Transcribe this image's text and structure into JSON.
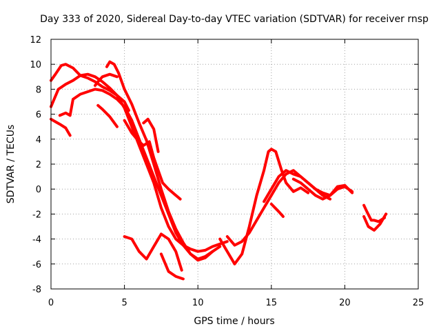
{
  "chart_data": {
    "type": "scatter",
    "title": "Day 333 of 2020, Sidereal Day-to-day VTEC variation (SDTVAR) for receiver rnsp",
    "xlabel": "GPS time / hours",
    "ylabel": "SDTVAR / TECUs",
    "xlim": [
      0,
      25
    ],
    "ylim": [
      -8,
      12
    ],
    "xticks": [
      "0",
      "5",
      "10",
      "15",
      "20",
      "25"
    ],
    "yticks": [
      "-8",
      "-6",
      "-4",
      "-2",
      "0",
      "2",
      "4",
      "6",
      "8",
      "10",
      "12"
    ],
    "grid": true,
    "marker_color": "#ff0000",
    "series": [
      {
        "name": "trace-1",
        "x": [
          0.0,
          0.3,
          0.7,
          1.0,
          1.5,
          2.0,
          2.5,
          3.0,
          3.5,
          4.0,
          4.5,
          5.0,
          5.3
        ],
        "y": [
          8.7,
          9.2,
          9.9,
          10.0,
          9.7,
          9.1,
          8.9,
          8.6,
          8.2,
          7.9,
          7.5,
          7.0,
          6.3
        ]
      },
      {
        "name": "trace-2",
        "x": [
          0.0,
          0.5,
          1.0,
          1.5,
          2.0,
          2.5,
          3.0,
          3.5,
          4.0,
          4.5,
          5.0,
          5.5,
          6.0,
          6.5,
          7.0,
          7.5,
          8.0,
          8.5,
          9.0,
          9.5,
          10.0,
          10.5,
          11.0,
          11.5,
          12.0
        ],
        "y": [
          6.6,
          8.0,
          8.4,
          8.7,
          9.1,
          9.2,
          9.0,
          8.6,
          8.1,
          7.5,
          6.5,
          5.0,
          3.5,
          2.0,
          0.5,
          -1.5,
          -3.0,
          -4.0,
          -4.5,
          -4.8,
          -5.0,
          -4.9,
          -4.6,
          -4.4,
          -4.2
        ]
      },
      {
        "name": "trace-3",
        "x": [
          0.0,
          0.3,
          0.6,
          1.0,
          1.3
        ],
        "y": [
          5.6,
          5.4,
          5.2,
          4.9,
          4.3
        ]
      },
      {
        "name": "trace-4",
        "x": [
          0.6,
          1.0,
          1.3,
          1.5,
          2.0,
          2.5,
          3.0,
          3.5,
          4.0,
          4.5,
          5.0,
          5.5,
          6.0,
          6.5,
          7.0,
          7.5,
          8.0,
          8.5,
          9.0,
          9.5,
          10.0,
          10.5,
          11.0,
          11.5
        ],
        "y": [
          5.9,
          6.1,
          5.9,
          7.2,
          7.6,
          7.8,
          8.0,
          7.9,
          7.6,
          7.2,
          6.6,
          5.5,
          4.0,
          2.5,
          1.0,
          -0.5,
          -2.0,
          -3.5,
          -4.5,
          -5.2,
          -5.7,
          -5.5,
          -5.0,
          -4.6
        ]
      },
      {
        "name": "trace-5",
        "x": [
          3.0,
          3.2,
          3.5,
          4.0,
          4.5
        ],
        "y": [
          8.3,
          8.6,
          9.0,
          9.2,
          9.0
        ]
      },
      {
        "name": "trace-6",
        "x": [
          3.8,
          4.0,
          4.3,
          4.6,
          5.0,
          5.5,
          6.0,
          6.5,
          7.0,
          7.5,
          8.0,
          8.5,
          9.0,
          9.5,
          10.0,
          10.5,
          11.0
        ],
        "y": [
          9.8,
          10.2,
          10.0,
          9.3,
          8.0,
          6.8,
          5.3,
          3.9,
          2.0,
          0.0,
          -1.8,
          -3.2,
          -4.3,
          -5.2,
          -5.6,
          -5.4,
          -5.0
        ]
      },
      {
        "name": "trace-7",
        "x": [
          3.2,
          3.5,
          4.0,
          4.5
        ],
        "y": [
          6.7,
          6.4,
          5.8,
          5.0
        ]
      },
      {
        "name": "trace-8",
        "x": [
          5.0,
          5.5,
          6.0,
          6.3,
          6.7,
          7.0,
          7.3,
          7.6,
          8.0,
          8.5,
          8.8
        ],
        "y": [
          5.5,
          4.5,
          3.8,
          3.5,
          3.8,
          2.5,
          1.5,
          0.5,
          0.0,
          -0.5,
          -0.8
        ]
      },
      {
        "name": "trace-9",
        "x": [
          6.3,
          6.6,
          7.0,
          7.3
        ],
        "y": [
          5.3,
          5.6,
          4.8,
          3.0
        ]
      },
      {
        "name": "trace-10",
        "x": [
          5.0,
          5.5,
          6.0,
          6.5,
          7.0,
          7.5,
          8.0,
          8.5,
          8.9
        ],
        "y": [
          -3.8,
          -4.0,
          -5.0,
          -5.6,
          -4.6,
          -3.6,
          -4.0,
          -5.0,
          -6.5
        ]
      },
      {
        "name": "trace-11",
        "x": [
          7.5,
          8.0,
          8.5,
          9.0
        ],
        "y": [
          -5.2,
          -6.6,
          -7.0,
          -7.2
        ]
      },
      {
        "name": "trace-12",
        "x": [
          11.5,
          12.0,
          12.5,
          13.0,
          13.5,
          14.0,
          14.5,
          14.8,
          15.0,
          15.3,
          15.7,
          16.0,
          16.5,
          17.0,
          17.5
        ],
        "y": [
          -4.0,
          -5.0,
          -6.0,
          -5.2,
          -3.0,
          -0.5,
          1.5,
          3.0,
          3.2,
          3.0,
          1.5,
          0.5,
          -0.2,
          0.1,
          -0.3
        ]
      },
      {
        "name": "trace-13",
        "x": [
          12.0,
          12.5,
          13.0,
          13.5,
          14.0,
          14.5,
          15.0,
          15.5,
          16.0,
          16.5,
          17.0,
          17.5,
          18.0,
          18.5,
          19.0
        ],
        "y": [
          -3.8,
          -4.5,
          -4.2,
          -3.5,
          -2.5,
          -1.5,
          -0.5,
          0.5,
          1.2,
          1.5,
          1.0,
          0.5,
          0.0,
          -0.5,
          -0.8
        ]
      },
      {
        "name": "trace-14",
        "x": [
          14.5,
          15.0,
          15.5,
          16.0,
          16.5,
          17.0,
          17.5,
          18.0,
          18.5,
          19.0,
          19.5,
          20.0,
          20.5
        ],
        "y": [
          -1.0,
          0.0,
          1.0,
          1.5,
          1.2,
          1.0,
          0.5,
          0.0,
          -0.3,
          -0.5,
          0.0,
          0.2,
          -0.2
        ]
      },
      {
        "name": "trace-15",
        "x": [
          15.0,
          15.5,
          15.8
        ],
        "y": [
          -1.2,
          -1.8,
          -2.2
        ]
      },
      {
        "name": "trace-16",
        "x": [
          16.5,
          17.0,
          17.5,
          18.0,
          18.5,
          19.0,
          19.5,
          20.0,
          20.5
        ],
        "y": [
          0.8,
          0.5,
          0.0,
          -0.5,
          -0.8,
          -0.5,
          0.2,
          0.3,
          -0.3
        ]
      },
      {
        "name": "trace-17",
        "x": [
          21.3,
          21.5,
          21.8,
          22.0,
          22.3,
          22.7
        ],
        "y": [
          -1.3,
          -1.8,
          -2.5,
          -2.5,
          -2.6,
          -2.3
        ]
      },
      {
        "name": "trace-18",
        "x": [
          21.3,
          21.6,
          22.0,
          22.4,
          22.8
        ],
        "y": [
          -2.2,
          -3.0,
          -3.3,
          -2.8,
          -2.0
        ]
      }
    ]
  }
}
